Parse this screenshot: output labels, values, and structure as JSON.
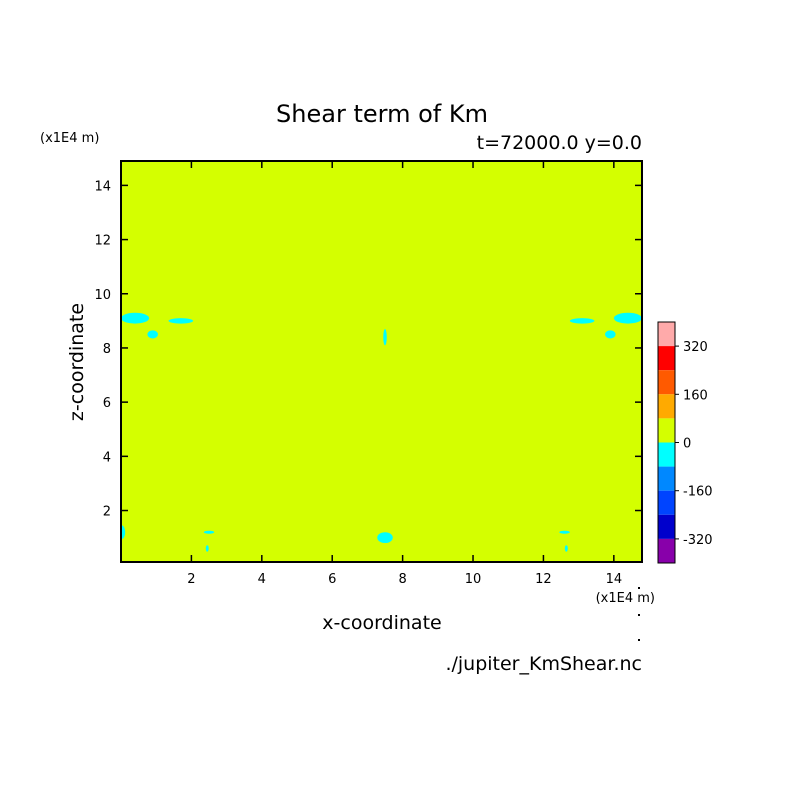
{
  "chart_data": {
    "type": "heatmap",
    "title": "Shear term of Km",
    "subtitle": "t=72000.0 y=0.0",
    "xlabel": "x-coordinate",
    "ylabel": "z-coordinate",
    "x_unit_label": "(x1E4 m)",
    "y_unit_label": "(x1E4 m)",
    "source_file": "./jupiter_KmShear.nc",
    "xlim": [
      0,
      14.8
    ],
    "ylim": [
      0.1,
      14.9
    ],
    "x_ticks": [
      2,
      4,
      6,
      8,
      10,
      12,
      14
    ],
    "y_ticks": [
      2,
      4,
      6,
      8,
      10,
      12,
      14
    ],
    "background_level_color": "#d4ff00",
    "colorbar": {
      "levels": [
        {
          "min": 320,
          "max": 400,
          "color": "#ffaaaa"
        },
        {
          "min": 240,
          "max": 320,
          "color": "#ff0000"
        },
        {
          "min": 160,
          "max": 240,
          "color": "#ff5a00"
        },
        {
          "min": 80,
          "max": 160,
          "color": "#ffaa00"
        },
        {
          "min": 0,
          "max": 80,
          "color": "#d4ff00"
        },
        {
          "min": -80,
          "max": 0,
          "color": "#00ffff"
        },
        {
          "min": -160,
          "max": -80,
          "color": "#0088ff"
        },
        {
          "min": -240,
          "max": -160,
          "color": "#0044ff"
        },
        {
          "min": -320,
          "max": -240,
          "color": "#0000cc"
        },
        {
          "min": -400,
          "max": -320,
          "color": "#8800aa"
        }
      ],
      "tick_labels": [
        "320",
        "160",
        "0",
        "-160",
        "-320"
      ],
      "tick_values": [
        320,
        160,
        0,
        -160,
        -320
      ],
      "range": [
        -400,
        400
      ]
    },
    "negative_regions": [
      {
        "x": 0.4,
        "z": 9.1,
        "rx": 0.4,
        "rz": 0.2
      },
      {
        "x": 1.7,
        "z": 9.0,
        "rx": 0.35,
        "rz": 0.1
      },
      {
        "x": 0.9,
        "z": 8.5,
        "rx": 0.15,
        "rz": 0.15
      },
      {
        "x": 7.5,
        "z": 8.4,
        "rx": 0.05,
        "rz": 0.3
      },
      {
        "x": 7.5,
        "z": 1.0,
        "rx": 0.22,
        "rz": 0.2
      },
      {
        "x": 0.02,
        "z": 1.2,
        "rx": 0.1,
        "rz": 0.25
      },
      {
        "x": 2.5,
        "z": 1.2,
        "rx": 0.15,
        "rz": 0.05
      },
      {
        "x": 2.45,
        "z": 0.6,
        "rx": 0.04,
        "rz": 0.12
      },
      {
        "x": 12.6,
        "z": 1.2,
        "rx": 0.15,
        "rz": 0.05
      },
      {
        "x": 12.65,
        "z": 0.6,
        "rx": 0.04,
        "rz": 0.12
      },
      {
        "x": 14.4,
        "z": 9.1,
        "rx": 0.4,
        "rz": 0.2
      },
      {
        "x": 13.1,
        "z": 9.0,
        "rx": 0.35,
        "rz": 0.1
      },
      {
        "x": 13.9,
        "z": 8.5,
        "rx": 0.15,
        "rz": 0.15
      }
    ]
  }
}
